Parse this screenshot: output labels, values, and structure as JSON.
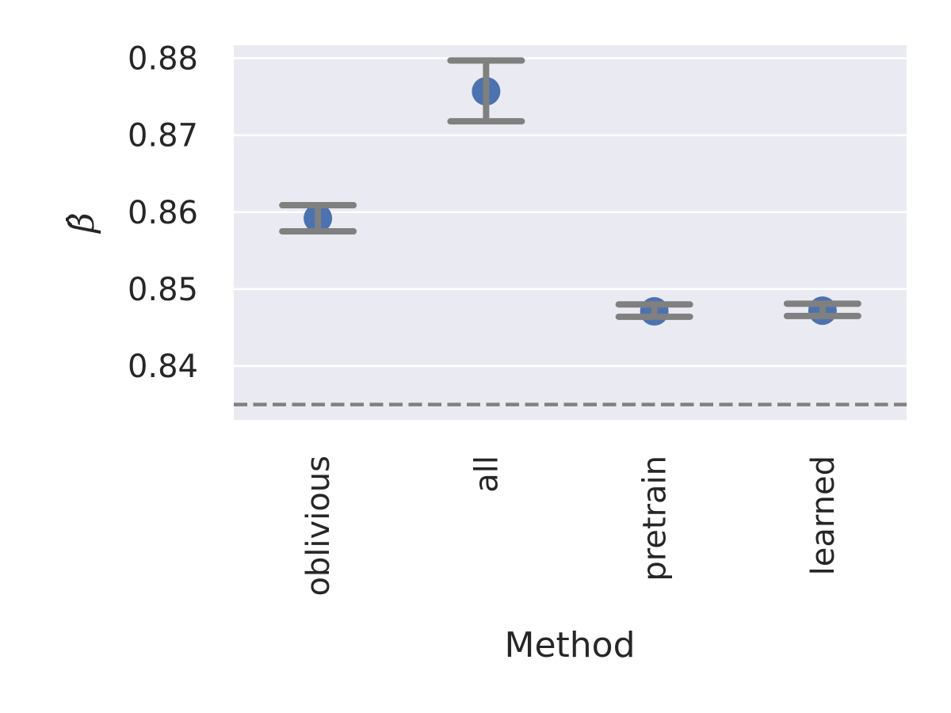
{
  "chart_data": {
    "type": "scatter",
    "categories": [
      "oblivious",
      "all",
      "pretrain",
      "learned"
    ],
    "points": [
      {
        "category": "oblivious",
        "value": 0.8592,
        "err_low": 0.8575,
        "err_high": 0.8609
      },
      {
        "category": "all",
        "value": 0.8757,
        "err_low": 0.8718,
        "err_high": 0.8797
      },
      {
        "category": "pretrain",
        "value": 0.8471,
        "err_low": 0.8464,
        "err_high": 0.848
      },
      {
        "category": "learned",
        "value": 0.8472,
        "err_low": 0.8465,
        "err_high": 0.8481
      }
    ],
    "reference_line": 0.835,
    "xlabel": "Method",
    "ylabel": "β̂",
    "ylim": [
      0.833,
      0.8817
    ],
    "yticks": [
      0.84,
      0.85,
      0.86,
      0.87,
      0.88
    ],
    "ytick_labels": [
      "0.84",
      "0.85",
      "0.86",
      "0.87",
      "0.88"
    ],
    "grid": true,
    "colors": {
      "background": "#EAEAF2",
      "grid": "#FFFFFF",
      "point": "#4C72B0",
      "errorbar": "#808080",
      "reference_line": "#808080",
      "text": "#262626"
    }
  }
}
